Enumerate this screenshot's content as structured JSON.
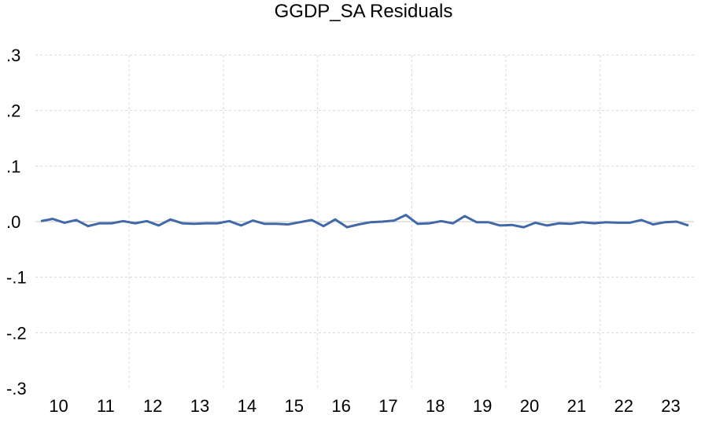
{
  "chart_data": {
    "type": "line",
    "title": "GGDP_SA Residuals",
    "xlabel": "",
    "ylabel": "",
    "ylim": [
      -0.3,
      0.3
    ],
    "yticks": [
      ".3",
      ".2",
      ".1",
      ".0",
      "-.1",
      "-.2",
      "-.3"
    ],
    "ytick_values": [
      0.3,
      0.2,
      0.1,
      0.0,
      -0.1,
      -0.2,
      -0.3
    ],
    "xticks": [
      "10",
      "11",
      "12",
      "13",
      "14",
      "15",
      "16",
      "17",
      "18",
      "19",
      "20",
      "21",
      "22",
      "23"
    ],
    "grid": true,
    "series": [
      {
        "color": "#4169a8",
        "values": [
          0.001,
          0.005,
          -0.002,
          0.003,
          -0.008,
          -0.003,
          -0.003,
          0.001,
          -0.003,
          0.001,
          -0.007,
          0.004,
          -0.003,
          -0.004,
          -0.003,
          -0.003,
          0.001,
          -0.007,
          0.002,
          -0.004,
          -0.004,
          -0.005,
          -0.001,
          0.003,
          -0.008,
          0.004,
          -0.01,
          -0.005,
          -0.001,
          0.0,
          0.002,
          0.012,
          -0.004,
          -0.003,
          0.001,
          -0.003,
          0.01,
          -0.001,
          -0.001,
          -0.007,
          -0.006,
          -0.01,
          -0.002,
          -0.007,
          -0.003,
          -0.004,
          -0.001,
          -0.003,
          -0.001,
          -0.002,
          -0.002,
          0.003,
          -0.005,
          -0.001,
          0.0,
          -0.007
        ]
      }
    ]
  }
}
